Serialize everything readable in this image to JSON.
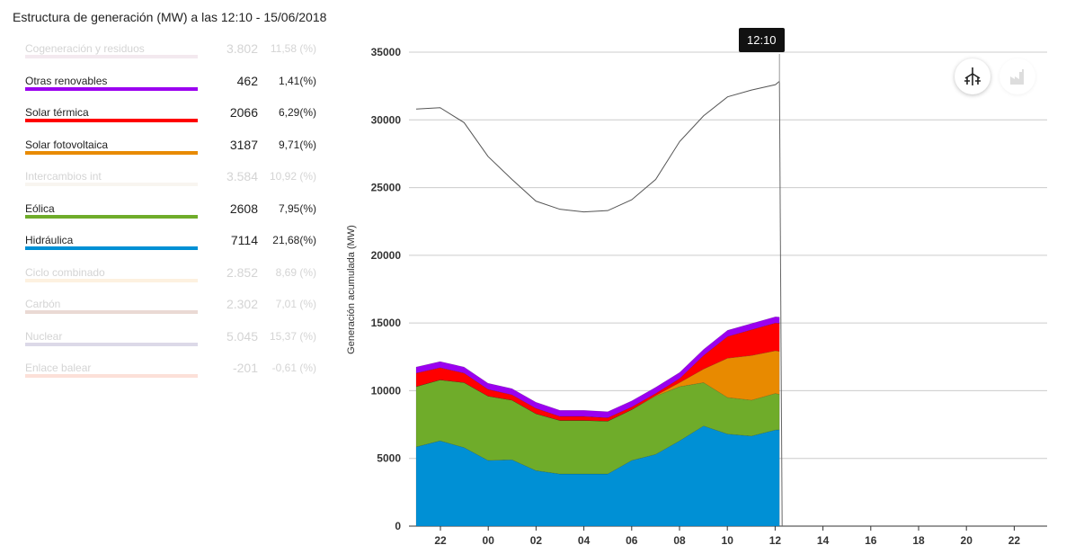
{
  "title": "Estructura de generación (MW) a las 12:10 - 15/06/2018",
  "legend": [
    {
      "name": "Cogeneración y residuos",
      "value": "3.802",
      "pct": "11,58 (%)",
      "color": "#f3e9ef",
      "active": false
    },
    {
      "name": "Otras renovables",
      "value": "462",
      "pct": "1,41(%)",
      "color": "#9b00f0",
      "active": true
    },
    {
      "name": "Solar térmica",
      "value": "2066",
      "pct": "6,29(%)",
      "color": "#ff0000",
      "active": true
    },
    {
      "name": "Solar fotovoltaica",
      "value": "3187",
      "pct": "9,71(%)",
      "color": "#e88a00",
      "active": true
    },
    {
      "name": "Intercambios int",
      "value": "3.584",
      "pct": "10,92 (%)",
      "color": "#f8f5f0",
      "active": false
    },
    {
      "name": "Eólica",
      "value": "2608",
      "pct": "7,95(%)",
      "color": "#6fac2a",
      "active": true
    },
    {
      "name": "Hidráulica",
      "value": "7114",
      "pct": "21,68(%)",
      "color": "#0090d5",
      "active": true
    },
    {
      "name": "Ciclo combinado",
      "value": "2.852",
      "pct": "8,69 (%)",
      "color": "#fdf1e0",
      "active": false
    },
    {
      "name": "Carbón",
      "value": "2.302",
      "pct": "7,01 (%)",
      "color": "#ead9d4",
      "active": false
    },
    {
      "name": "Nuclear",
      "value": "5.045",
      "pct": "15,37 (%)",
      "color": "#dcd9e8",
      "active": false
    },
    {
      "name": "Enlace balear",
      "value": "-201",
      "pct": "-0,61 (%)",
      "color": "#fce0d8",
      "active": false
    }
  ],
  "tooltip": "12:10",
  "icons": {
    "wind": "wind-turbine-icon",
    "factory": "factory-icon"
  },
  "chart_data": {
    "type": "area",
    "stacked": true,
    "ylabel": "Generación acumulada (MW)",
    "ylim": [
      0,
      35000
    ],
    "yticks": [
      0,
      5000,
      10000,
      15000,
      20000,
      25000,
      30000,
      35000
    ],
    "xticks": [
      "22",
      "00",
      "02",
      "04",
      "06",
      "08",
      "10",
      "12",
      "14",
      "16",
      "18",
      "20",
      "22"
    ],
    "x": [
      "21:00",
      "22:00",
      "23:00",
      "00:00",
      "01:00",
      "02:00",
      "03:00",
      "04:00",
      "05:00",
      "06:00",
      "07:00",
      "08:00",
      "09:00",
      "10:00",
      "11:00",
      "12:00",
      "12:10"
    ],
    "series": [
      {
        "name": "Hidráulica",
        "color": "#0090d5",
        "values": [
          5850,
          6300,
          5800,
          4850,
          4900,
          4100,
          3850,
          3850,
          3850,
          4850,
          5300,
          6300,
          7400,
          6800,
          6650,
          7100,
          7114
        ]
      },
      {
        "name": "Eólica",
        "color": "#6fac2a",
        "values": [
          4450,
          4500,
          4800,
          4750,
          4400,
          4200,
          3950,
          3950,
          3900,
          3750,
          4300,
          4000,
          3200,
          2700,
          2650,
          2700,
          2608
        ]
      },
      {
        "name": "Solar fotovoltaica",
        "color": "#e88a00",
        "values": [
          0,
          0,
          0,
          0,
          0,
          0,
          0,
          0,
          0,
          0,
          50,
          300,
          1000,
          2900,
          3300,
          3150,
          3187
        ]
      },
      {
        "name": "Solar térmica",
        "color": "#ff0000",
        "values": [
          1000,
          900,
          700,
          500,
          400,
          400,
          300,
          300,
          250,
          200,
          150,
          300,
          1000,
          1600,
          1900,
          2050,
          2066
        ]
      },
      {
        "name": "Otras renovables",
        "color": "#9b00f0",
        "values": [
          450,
          450,
          450,
          450,
          450,
          450,
          450,
          450,
          450,
          450,
          450,
          450,
          450,
          460,
          460,
          460,
          462
        ]
      }
    ],
    "total_line": {
      "color": "#555555",
      "values": [
        30800,
        30900,
        29800,
        27300,
        25600,
        24000,
        23400,
        23200,
        23300,
        24100,
        25600,
        28400,
        30300,
        31700,
        32200,
        32600,
        32850
      ]
    }
  }
}
